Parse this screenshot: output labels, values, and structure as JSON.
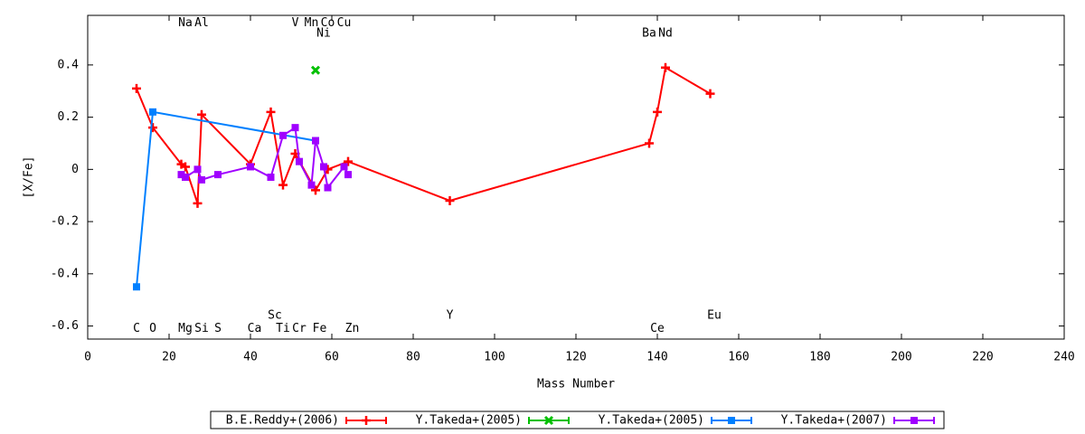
{
  "chart_data": {
    "type": "line",
    "xlabel": "Mass Number",
    "ylabel": "[X/Fe]",
    "xlim": [
      0,
      240
    ],
    "xticks": [
      0,
      20,
      40,
      60,
      80,
      100,
      120,
      140,
      160,
      180,
      200,
      220,
      240
    ],
    "ylim": [
      -0.65,
      0.59
    ],
    "yticks": [
      -0.6,
      -0.4,
      -0.2,
      0,
      0.2,
      0.4
    ],
    "grid": false,
    "legend": "bottom",
    "series": [
      {
        "name": "B.E.Reddy+(2006)",
        "color": "#ff0000",
        "marker": "plus",
        "x": [
          12,
          16,
          23,
          24,
          27,
          28,
          40,
          45,
          48,
          51,
          56,
          59,
          64,
          89,
          138,
          140,
          142,
          153
        ],
        "values": [
          0.31,
          0.16,
          0.02,
          0.01,
          -0.13,
          0.21,
          0.02,
          0.22,
          -0.06,
          0.06,
          -0.08,
          0.0,
          0.03,
          -0.12,
          0.1,
          0.22,
          0.39,
          0.29
        ]
      },
      {
        "name": "Y.Takeda+(2005)",
        "color": "#00c000",
        "marker": "cross",
        "x": [
          56
        ],
        "values": [
          0.38
        ]
      },
      {
        "name": "Y.Takeda+(2005)",
        "color": "#0080ff",
        "marker": "square",
        "x": [
          12,
          16,
          56
        ],
        "values": [
          -0.45,
          0.22,
          0.11
        ]
      },
      {
        "name": "Y.Takeda+(2007)",
        "color": "#a000ff",
        "marker": "square",
        "x": [
          23,
          24,
          27,
          28,
          32,
          40,
          45,
          48,
          51,
          52,
          55,
          56,
          58,
          59,
          63,
          64
        ],
        "values": [
          -0.02,
          -0.03,
          0.0,
          -0.04,
          -0.02,
          0.01,
          -0.03,
          0.13,
          0.16,
          0.03,
          -0.06,
          0.11,
          0.01,
          -0.07,
          0.01,
          -0.02
        ]
      }
    ],
    "annotations": [
      {
        "text": "Na",
        "x": 24,
        "y": 0.56
      },
      {
        "text": "Al",
        "x": 28,
        "y": 0.56
      },
      {
        "text": "V",
        "x": 51,
        "y": 0.56
      },
      {
        "text": "Mn",
        "x": 55,
        "y": 0.56
      },
      {
        "text": "Co",
        "x": 59,
        "y": 0.56
      },
      {
        "text": "Cu",
        "x": 63,
        "y": 0.56
      },
      {
        "text": "Ni",
        "x": 58,
        "y": 0.52
      },
      {
        "text": "Ba",
        "x": 138,
        "y": 0.52
      },
      {
        "text": "Nd",
        "x": 142,
        "y": 0.52
      },
      {
        "text": "C",
        "x": 12,
        "y": -0.61
      },
      {
        "text": "O",
        "x": 16,
        "y": -0.61
      },
      {
        "text": "Mg",
        "x": 24,
        "y": -0.61
      },
      {
        "text": "Si",
        "x": 28,
        "y": -0.61
      },
      {
        "text": "S",
        "x": 32,
        "y": -0.61
      },
      {
        "text": "Ca",
        "x": 41,
        "y": -0.61
      },
      {
        "text": "Sc",
        "x": 46,
        "y": -0.56
      },
      {
        "text": "Ti",
        "x": 48,
        "y": -0.61
      },
      {
        "text": "Cr",
        "x": 52,
        "y": -0.61
      },
      {
        "text": "Fe",
        "x": 57,
        "y": -0.61
      },
      {
        "text": "Zn",
        "x": 65,
        "y": -0.61
      },
      {
        "text": "Y",
        "x": 89,
        "y": -0.56
      },
      {
        "text": "Ce",
        "x": 140,
        "y": -0.61
      },
      {
        "text": "Eu",
        "x": 154,
        "y": -0.56
      }
    ]
  }
}
